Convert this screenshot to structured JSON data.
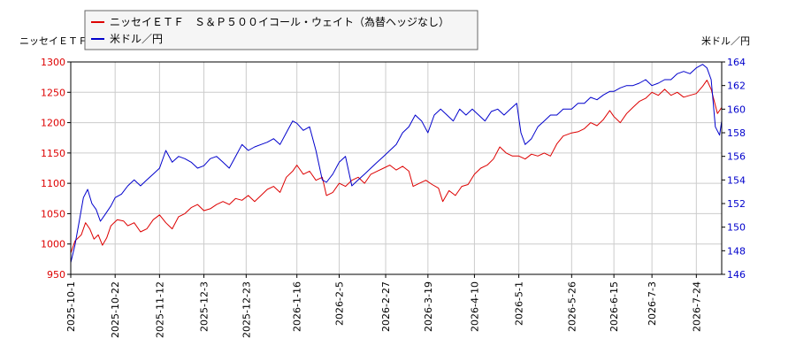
{
  "chart_data": {
    "type": "line",
    "legend_position": "top-left",
    "grid": true,
    "left_axis_label": "ニッセイＥＴＦ",
    "right_axis_label": "米ドル／円",
    "left_ylim": [
      950,
      1300
    ],
    "left_yticks": [
      950,
      1000,
      1050,
      1100,
      1150,
      1200,
      1250,
      1300
    ],
    "right_ylim": [
      146,
      164
    ],
    "right_yticks": [
      146,
      148,
      150,
      152,
      154,
      156,
      158,
      160,
      162,
      164
    ],
    "x_range": [
      "2025-10-01",
      "2026-08-05"
    ],
    "x_ticks": [
      "2025-10-1",
      "2025-10-22",
      "2025-11-12",
      "2025-12-3",
      "2025-12-23",
      "2026-1-16",
      "2026-2-5",
      "2026-2-27",
      "2026-3-19",
      "2026-4-10",
      "2026-5-1",
      "2026-5-26",
      "2026-6-15",
      "2026-7-3",
      "2026-7-24"
    ],
    "colors": {
      "series1": "#dd0000",
      "series2": "#0000cc",
      "grid": "#cccccc",
      "left_tick": "#dd0000",
      "right_tick": "#0000cc"
    },
    "series": [
      {
        "name": "ニッセイＥＴＦ　Ｓ＆Ｐ５００イコール・ウェイト（為替ヘッジなし）",
        "axis": "left",
        "color": "#dd0000",
        "points": [
          [
            "2025-10-01",
            985
          ],
          [
            "2025-10-03",
            1005
          ],
          [
            "2025-10-06",
            1015
          ],
          [
            "2025-10-08",
            1035
          ],
          [
            "2025-10-10",
            1025
          ],
          [
            "2025-10-12",
            1008
          ],
          [
            "2025-10-14",
            1015
          ],
          [
            "2025-10-16",
            998
          ],
          [
            "2025-10-18",
            1010
          ],
          [
            "2025-10-20",
            1030
          ],
          [
            "2025-10-23",
            1040
          ],
          [
            "2025-10-26",
            1038
          ],
          [
            "2025-10-28",
            1030
          ],
          [
            "2025-10-31",
            1035
          ],
          [
            "2025-11-03",
            1020
          ],
          [
            "2025-11-06",
            1025
          ],
          [
            "2025-11-09",
            1040
          ],
          [
            "2025-11-12",
            1048
          ],
          [
            "2025-11-15",
            1035
          ],
          [
            "2025-11-18",
            1025
          ],
          [
            "2025-11-21",
            1045
          ],
          [
            "2025-11-24",
            1050
          ],
          [
            "2025-11-27",
            1060
          ],
          [
            "2025-11-30",
            1065
          ],
          [
            "2025-12-03",
            1055
          ],
          [
            "2025-12-06",
            1058
          ],
          [
            "2025-12-09",
            1065
          ],
          [
            "2025-12-12",
            1070
          ],
          [
            "2025-12-15",
            1065
          ],
          [
            "2025-12-18",
            1075
          ],
          [
            "2025-12-21",
            1072
          ],
          [
            "2025-12-24",
            1080
          ],
          [
            "2025-12-27",
            1070
          ],
          [
            "2025-12-30",
            1080
          ],
          [
            "2026-01-02",
            1090
          ],
          [
            "2026-01-05",
            1095
          ],
          [
            "2026-01-08",
            1085
          ],
          [
            "2026-01-11",
            1110
          ],
          [
            "2026-01-14",
            1120
          ],
          [
            "2026-01-16",
            1130
          ],
          [
            "2026-01-19",
            1115
          ],
          [
            "2026-01-22",
            1120
          ],
          [
            "2026-01-25",
            1105
          ],
          [
            "2026-01-28",
            1110
          ],
          [
            "2026-01-30",
            1080
          ],
          [
            "2026-02-02",
            1085
          ],
          [
            "2026-02-05",
            1100
          ],
          [
            "2026-02-08",
            1095
          ],
          [
            "2026-02-11",
            1105
          ],
          [
            "2026-02-14",
            1110
          ],
          [
            "2026-02-17",
            1100
          ],
          [
            "2026-02-20",
            1115
          ],
          [
            "2026-02-23",
            1120
          ],
          [
            "2026-02-26",
            1125
          ],
          [
            "2026-03-01",
            1130
          ],
          [
            "2026-03-04",
            1122
          ],
          [
            "2026-03-07",
            1128
          ],
          [
            "2026-03-10",
            1120
          ],
          [
            "2026-03-12",
            1095
          ],
          [
            "2026-03-15",
            1100
          ],
          [
            "2026-03-18",
            1105
          ],
          [
            "2026-03-21",
            1098
          ],
          [
            "2026-03-24",
            1092
          ],
          [
            "2026-03-26",
            1070
          ],
          [
            "2026-03-29",
            1088
          ],
          [
            "2026-04-01",
            1080
          ],
          [
            "2026-04-04",
            1095
          ],
          [
            "2026-04-07",
            1098
          ],
          [
            "2026-04-10",
            1115
          ],
          [
            "2026-04-13",
            1125
          ],
          [
            "2026-04-16",
            1130
          ],
          [
            "2026-04-19",
            1140
          ],
          [
            "2026-04-22",
            1160
          ],
          [
            "2026-04-25",
            1150
          ],
          [
            "2026-04-28",
            1145
          ],
          [
            "2026-05-01",
            1145
          ],
          [
            "2026-05-04",
            1140
          ],
          [
            "2026-05-07",
            1148
          ],
          [
            "2026-05-10",
            1145
          ],
          [
            "2026-05-13",
            1150
          ],
          [
            "2026-05-16",
            1145
          ],
          [
            "2026-05-19",
            1165
          ],
          [
            "2026-05-22",
            1178
          ],
          [
            "2026-05-26",
            1183
          ],
          [
            "2026-05-29",
            1185
          ],
          [
            "2026-06-01",
            1190
          ],
          [
            "2026-06-04",
            1200
          ],
          [
            "2026-06-07",
            1195
          ],
          [
            "2026-06-10",
            1205
          ],
          [
            "2026-06-13",
            1220
          ],
          [
            "2026-06-15",
            1210
          ],
          [
            "2026-06-18",
            1200
          ],
          [
            "2026-06-21",
            1215
          ],
          [
            "2026-06-24",
            1225
          ],
          [
            "2026-06-27",
            1235
          ],
          [
            "2026-06-30",
            1240
          ],
          [
            "2026-07-03",
            1250
          ],
          [
            "2026-07-06",
            1245
          ],
          [
            "2026-07-09",
            1255
          ],
          [
            "2026-07-12",
            1245
          ],
          [
            "2026-07-15",
            1250
          ],
          [
            "2026-07-18",
            1242
          ],
          [
            "2026-07-21",
            1245
          ],
          [
            "2026-07-24",
            1248
          ],
          [
            "2026-07-27",
            1260
          ],
          [
            "2026-07-29",
            1270
          ],
          [
            "2026-07-31",
            1255
          ],
          [
            "2026-08-03",
            1215
          ],
          [
            "2026-08-05",
            1225
          ]
        ]
      },
      {
        "name": "米ドル／円",
        "axis": "right",
        "color": "#0000cc",
        "points": [
          [
            "2025-10-01",
            147.0
          ],
          [
            "2025-10-03",
            148.5
          ],
          [
            "2025-10-05",
            150.5
          ],
          [
            "2025-10-07",
            152.5
          ],
          [
            "2025-10-09",
            153.2
          ],
          [
            "2025-10-11",
            152.0
          ],
          [
            "2025-10-13",
            151.5
          ],
          [
            "2025-10-15",
            150.5
          ],
          [
            "2025-10-17",
            151.0
          ],
          [
            "2025-10-20",
            151.8
          ],
          [
            "2025-10-22",
            152.5
          ],
          [
            "2025-10-25",
            152.8
          ],
          [
            "2025-10-28",
            153.5
          ],
          [
            "2025-10-31",
            154.0
          ],
          [
            "2025-11-03",
            153.5
          ],
          [
            "2025-11-06",
            154.0
          ],
          [
            "2025-11-09",
            154.5
          ],
          [
            "2025-11-12",
            155.0
          ],
          [
            "2025-11-15",
            156.5
          ],
          [
            "2025-11-18",
            155.5
          ],
          [
            "2025-11-21",
            156.0
          ],
          [
            "2025-11-24",
            155.8
          ],
          [
            "2025-11-27",
            155.5
          ],
          [
            "2025-11-30",
            155.0
          ],
          [
            "2025-12-03",
            155.2
          ],
          [
            "2025-12-06",
            155.8
          ],
          [
            "2025-12-09",
            156.0
          ],
          [
            "2025-12-12",
            155.5
          ],
          [
            "2025-12-15",
            155.0
          ],
          [
            "2025-12-18",
            156.0
          ],
          [
            "2025-12-21",
            157.0
          ],
          [
            "2025-12-24",
            156.5
          ],
          [
            "2025-12-27",
            156.8
          ],
          [
            "2025-12-30",
            157.0
          ],
          [
            "2026-01-02",
            157.2
          ],
          [
            "2026-01-05",
            157.5
          ],
          [
            "2026-01-08",
            157.0
          ],
          [
            "2026-01-11",
            158.0
          ],
          [
            "2026-01-14",
            159.0
          ],
          [
            "2026-01-16",
            158.8
          ],
          [
            "2026-01-19",
            158.2
          ],
          [
            "2026-01-22",
            158.5
          ],
          [
            "2026-01-25",
            156.5
          ],
          [
            "2026-01-28",
            154.0
          ],
          [
            "2026-01-30",
            153.8
          ],
          [
            "2026-02-02",
            154.5
          ],
          [
            "2026-02-05",
            155.5
          ],
          [
            "2026-02-08",
            156.0
          ],
          [
            "2026-02-11",
            153.5
          ],
          [
            "2026-02-14",
            154.0
          ],
          [
            "2026-02-17",
            154.5
          ],
          [
            "2026-02-20",
            155.0
          ],
          [
            "2026-02-23",
            155.5
          ],
          [
            "2026-02-26",
            156.0
          ],
          [
            "2026-03-01",
            156.5
          ],
          [
            "2026-03-04",
            157.0
          ],
          [
            "2026-03-07",
            158.0
          ],
          [
            "2026-03-10",
            158.5
          ],
          [
            "2026-03-13",
            159.5
          ],
          [
            "2026-03-16",
            159.0
          ],
          [
            "2026-03-19",
            158.0
          ],
          [
            "2026-03-22",
            159.5
          ],
          [
            "2026-03-25",
            160.0
          ],
          [
            "2026-03-28",
            159.5
          ],
          [
            "2026-03-31",
            159.0
          ],
          [
            "2026-04-03",
            160.0
          ],
          [
            "2026-04-06",
            159.5
          ],
          [
            "2026-04-09",
            160.0
          ],
          [
            "2026-04-12",
            159.5
          ],
          [
            "2026-04-15",
            159.0
          ],
          [
            "2026-04-18",
            159.8
          ],
          [
            "2026-04-21",
            160.0
          ],
          [
            "2026-04-24",
            159.5
          ],
          [
            "2026-04-27",
            160.0
          ],
          [
            "2026-04-30",
            160.5
          ],
          [
            "2026-05-02",
            158.0
          ],
          [
            "2026-05-04",
            157.0
          ],
          [
            "2026-05-07",
            157.5
          ],
          [
            "2026-05-10",
            158.5
          ],
          [
            "2026-05-13",
            159.0
          ],
          [
            "2026-05-16",
            159.5
          ],
          [
            "2026-05-19",
            159.5
          ],
          [
            "2026-05-22",
            160.0
          ],
          [
            "2026-05-26",
            160.0
          ],
          [
            "2026-05-29",
            160.5
          ],
          [
            "2026-06-01",
            160.5
          ],
          [
            "2026-06-04",
            161.0
          ],
          [
            "2026-06-07",
            160.8
          ],
          [
            "2026-06-10",
            161.2
          ],
          [
            "2026-06-13",
            161.5
          ],
          [
            "2026-06-15",
            161.5
          ],
          [
            "2026-06-18",
            161.8
          ],
          [
            "2026-06-21",
            162.0
          ],
          [
            "2026-06-24",
            162.0
          ],
          [
            "2026-06-27",
            162.2
          ],
          [
            "2026-06-30",
            162.5
          ],
          [
            "2026-07-03",
            162.0
          ],
          [
            "2026-07-06",
            162.2
          ],
          [
            "2026-07-09",
            162.5
          ],
          [
            "2026-07-12",
            162.5
          ],
          [
            "2026-07-15",
            163.0
          ],
          [
            "2026-07-18",
            163.2
          ],
          [
            "2026-07-21",
            163.0
          ],
          [
            "2026-07-24",
            163.5
          ],
          [
            "2026-07-27",
            163.8
          ],
          [
            "2026-07-29",
            163.5
          ],
          [
            "2026-07-31",
            162.5
          ],
          [
            "2026-08-02",
            158.5
          ],
          [
            "2026-08-04",
            157.8
          ],
          [
            "2026-08-05",
            159.0
          ]
        ]
      }
    ]
  }
}
